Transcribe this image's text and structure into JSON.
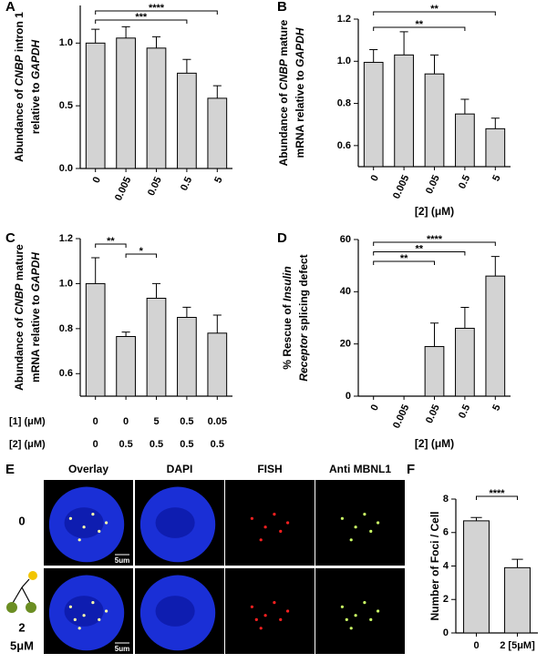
{
  "chart_data": [
    {
      "type": "bar",
      "panel": "A",
      "y_label": [
        [
          {
            "text": "Abundance of "
          },
          {
            "text": "CNBP",
            "italic": true
          },
          {
            "text": " intron 1"
          }
        ],
        [
          {
            "text": "relative to "
          },
          {
            "text": "GAPDH",
            "italic": true
          }
        ]
      ],
      "categories": [
        "0",
        "0.005",
        "0.05",
        "0.5",
        "5"
      ],
      "values": [
        1.0,
        1.04,
        0.96,
        0.76,
        0.56
      ],
      "errors": [
        0.11,
        0.09,
        0.09,
        0.11,
        0.1
      ],
      "color": "#d3d3d3",
      "ylim": [
        0,
        1.3
      ],
      "yticks": [
        {
          "value": 0,
          "label": "0.0"
        },
        0.5,
        {
          "value": 1,
          "label": "1.0"
        }
      ],
      "significance": [
        {
          "from": 0,
          "to": 4,
          "label": "****"
        },
        {
          "from": 0,
          "to": 3,
          "label": "***"
        }
      ]
    },
    {
      "type": "bar",
      "panel": "B",
      "y_label": [
        [
          {
            "text": "Abundance of "
          },
          {
            "text": "CNBP",
            "italic": true
          },
          {
            "text": " mature"
          }
        ],
        [
          {
            "text": "mRNA relative to "
          },
          {
            "text": "GAPDH",
            "italic": true
          }
        ]
      ],
      "x_label": "[2] (μM)",
      "categories": [
        "0",
        "0.005",
        "0.05",
        "0.5",
        "5"
      ],
      "values": [
        0.995,
        1.03,
        0.94,
        0.75,
        0.68
      ],
      "errors": [
        0.06,
        0.11,
        0.09,
        0.07,
        0.05
      ],
      "color": "#d3d3d3",
      "ylim": [
        0.5,
        1.2
      ],
      "yticks": [
        0.6,
        0.8,
        {
          "value": 1,
          "label": "1.0"
        },
        1.2
      ],
      "significance": [
        {
          "from": 0,
          "to": 4,
          "label": "**"
        },
        {
          "from": 0,
          "to": 3,
          "label": "**"
        }
      ]
    },
    {
      "type": "bar",
      "panel": "C",
      "y_label": [
        [
          {
            "text": "Abundance of "
          },
          {
            "text": "CNBP",
            "italic": true
          },
          {
            "text": " mature"
          }
        ],
        [
          {
            "text": "mRNA relative to "
          },
          {
            "text": "GAPDH",
            "italic": true
          }
        ]
      ],
      "table": {
        "row_labels": [
          "[1] (μM)",
          "[2] (μM)"
        ],
        "rows": [
          [
            "0",
            "0",
            "5",
            "0.5",
            "0.05"
          ],
          [
            "0",
            "0.5",
            "0.5",
            "0.5",
            "0.5"
          ]
        ]
      },
      "values": [
        1.0,
        0.765,
        0.935,
        0.85,
        0.78
      ],
      "errors": [
        0.115,
        0.02,
        0.065,
        0.045,
        0.08
      ],
      "color": "#d3d3d3",
      "ylim": [
        0.5,
        1.2
      ],
      "yticks": [
        0.6,
        0.8,
        {
          "value": 1,
          "label": "1.0"
        },
        1.2
      ],
      "significance": [
        {
          "from": 0,
          "to": 1,
          "label": "**"
        },
        {
          "from": 1,
          "to": 2,
          "label": "*"
        }
      ]
    },
    {
      "type": "bar",
      "panel": "D",
      "y_label": [
        [
          {
            "text": "% Rescue of "
          },
          {
            "text": "Insulin",
            "italic": true
          }
        ],
        [
          {
            "text": "Receptor",
            "italic": true
          },
          {
            "text": " splicing defect"
          }
        ]
      ],
      "x_label": "[2] (μM)",
      "categories": [
        "0",
        "0.005",
        "0.05",
        "0.5",
        "5"
      ],
      "values": [
        0,
        0,
        19,
        26,
        46
      ],
      "errors": [
        0,
        0,
        9,
        8,
        7.5
      ],
      "color": "#d3d3d3",
      "ylim": [
        0,
        60
      ],
      "yticks": [
        0,
        20,
        40,
        60
      ],
      "significance": [
        {
          "from": 0,
          "to": 4,
          "label": "****"
        },
        {
          "from": 0,
          "to": 3,
          "label": "**"
        },
        {
          "from": 0,
          "to": 2,
          "label": "**"
        }
      ]
    },
    {
      "type": "bar",
      "panel": "F",
      "y_label": [
        [
          {
            "text": "Number of Foci / Cell"
          }
        ]
      ],
      "categories": [
        "0",
        "2 [5μM]"
      ],
      "values": [
        6.7,
        3.9
      ],
      "errors": [
        0.2,
        0.5
      ],
      "color": "#d3d3d3",
      "ylim": [
        0,
        8
      ],
      "yticks": [
        0,
        2,
        4,
        6,
        8
      ],
      "significance": [
        {
          "from": 0,
          "to": 1,
          "label": "****"
        }
      ]
    }
  ],
  "panel_e": {
    "panel": "E",
    "columns": [
      "Overlay",
      "DAPI",
      "FISH",
      "Anti MBNL1"
    ],
    "row_labels": [
      "0",
      "2",
      "5μM"
    ],
    "scale_label": "5um"
  }
}
